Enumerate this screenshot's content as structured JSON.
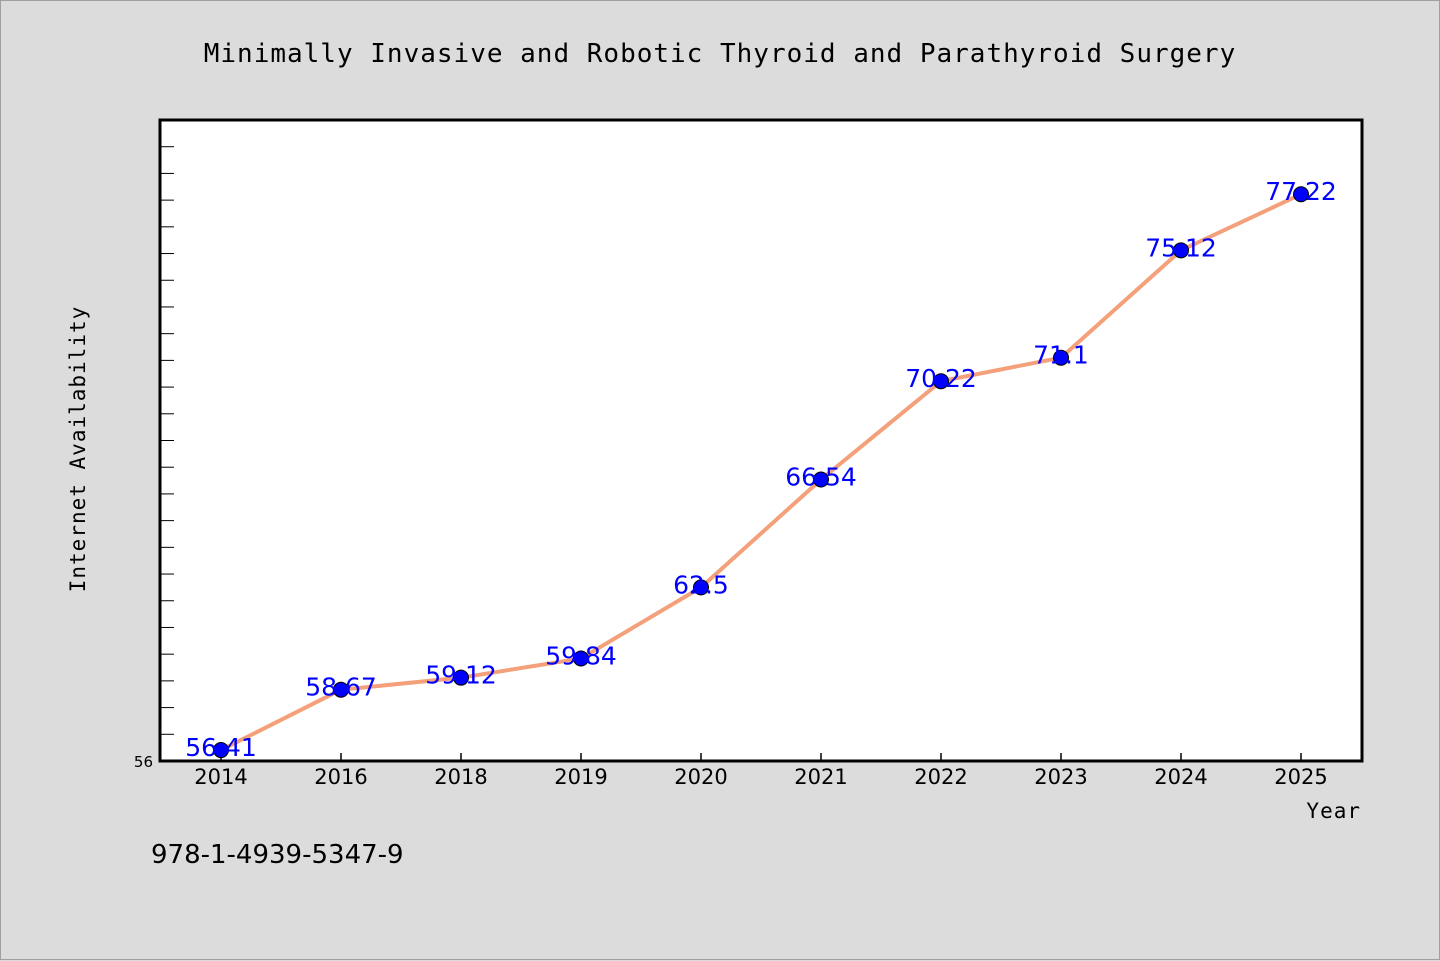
{
  "chart_data": {
    "type": "line",
    "title": "Minimally Invasive and Robotic Thyroid and Parathyroid Surgery",
    "xlabel": "Year",
    "ylabel": "Internet Availability",
    "categories": [
      "2014",
      "2016",
      "2018",
      "2019",
      "2020",
      "2021",
      "2022",
      "2023",
      "2024",
      "2025"
    ],
    "series": [
      {
        "values": [
          56.41,
          58.67,
          59.12,
          59.84,
          62.5,
          66.54,
          70.22,
          71.1,
          75.12,
          77.22
        ],
        "value_labels": [
          "56.41",
          "58.67",
          "59.12",
          "59.84",
          "62.5",
          "66.54",
          "70.22",
          "71.1",
          "75.12",
          "77.22"
        ]
      }
    ],
    "ylim": [
      56,
      80
    ],
    "ytick_labels": [
      "56"
    ],
    "line_color": "#f4a07a",
    "marker_color": "#0000ff",
    "label_color": "#0000ff",
    "grid": false,
    "legend": "none"
  },
  "footer": {
    "isbn": "978-1-4939-5347-9"
  }
}
